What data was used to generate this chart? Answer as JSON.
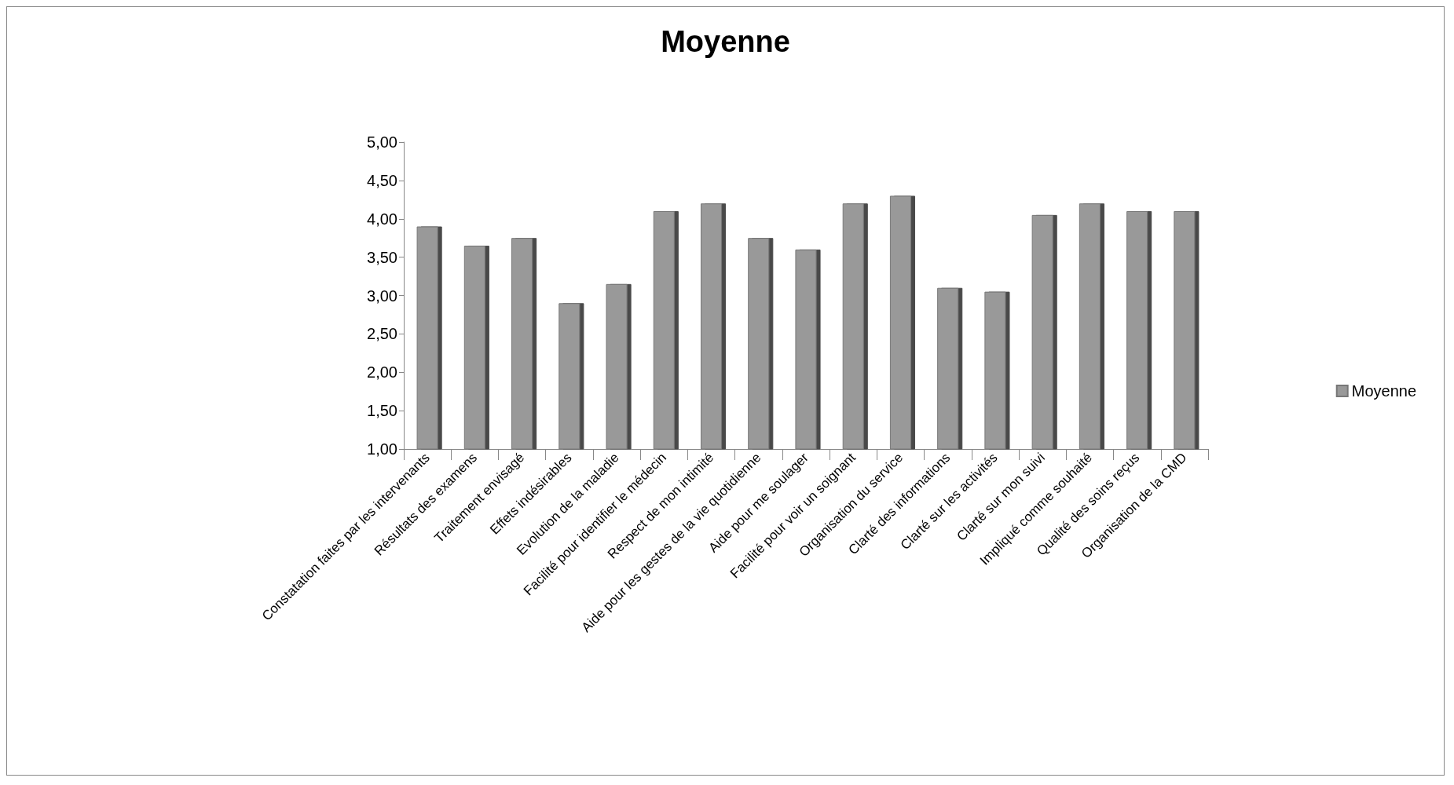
{
  "chart_data": {
    "type": "bar",
    "title": "Moyenne",
    "categories": [
      "Constatation faites par les intervenants",
      "Résultats des examens",
      "Traitement envisagé",
      "Effets indésirables",
      "Evolution de la maladie",
      "Facilité pour identifier le médecin",
      "Respect de mon intimité",
      "Aide pour les gestes de la vie quotidienne",
      "Aide pour me soulager",
      "Facilité pour voir un soignant",
      "Organisation du service",
      "Clarté des informations",
      "Clarté sur les activités",
      "Clarté sur mon suivi",
      "Impliqué comme souhaité",
      "Qualité des soins reçus",
      "Organisation de la CMD"
    ],
    "series": [
      {
        "name": "Moyenne",
        "color": "#999999",
        "values": [
          3.9,
          3.65,
          3.75,
          2.9,
          3.15,
          4.1,
          4.2,
          3.75,
          3.6,
          4.2,
          4.3,
          3.1,
          3.05,
          4.05,
          4.2,
          4.1,
          4.1
        ]
      }
    ],
    "ylim": [
      1,
      5
    ],
    "yticks": [
      {
        "value": 1,
        "label": "1,00"
      },
      {
        "value": 1.5,
        "label": "1,50"
      },
      {
        "value": 2,
        "label": "2,00"
      },
      {
        "value": 2.5,
        "label": "2,50"
      },
      {
        "value": 3,
        "label": "3,00"
      },
      {
        "value": 3.5,
        "label": "3,50"
      },
      {
        "value": 4,
        "label": "4,00"
      },
      {
        "value": 4.5,
        "label": "4,50"
      },
      {
        "value": 5,
        "label": "5,00"
      }
    ],
    "grid": false,
    "legend": "right"
  }
}
